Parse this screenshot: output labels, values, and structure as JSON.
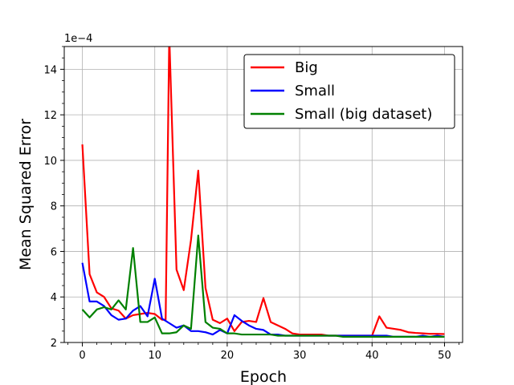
{
  "chart_data": {
    "type": "line",
    "title": "",
    "xlabel": "Epoch",
    "ylabel": "Mean Squared Error",
    "y_offset_label": "1e−4",
    "xlim": [
      -2.5,
      52.5
    ],
    "ylim": [
      2,
      15
    ],
    "x_ticks": [
      0,
      10,
      20,
      30,
      40,
      50
    ],
    "y_ticks": [
      2,
      4,
      6,
      8,
      10,
      12,
      14
    ],
    "x_minor_step": 2,
    "y_minor_step": 0.5,
    "grid": true,
    "legend_position": "top-right",
    "series": [
      {
        "name": "Big",
        "color": "#ff0000",
        "x": [
          0,
          1,
          2,
          3,
          4,
          5,
          6,
          7,
          8,
          9,
          10,
          11,
          11.5,
          12,
          13,
          14,
          15,
          16,
          17,
          18,
          19,
          20,
          21,
          22,
          23,
          24,
          25,
          26,
          27,
          28,
          29,
          30,
          31,
          32,
          33,
          34,
          35,
          36,
          37,
          38,
          39,
          40,
          41,
          42,
          43,
          44,
          45,
          46,
          47,
          48,
          49,
          50
        ],
        "y": [
          10.7,
          5.0,
          4.2,
          4.0,
          3.5,
          3.4,
          3.05,
          3.2,
          3.25,
          3.3,
          3.25,
          3.0,
          3.0,
          15.5,
          5.2,
          4.3,
          6.5,
          9.55,
          4.4,
          3.0,
          2.85,
          3.05,
          2.5,
          2.9,
          2.95,
          2.9,
          3.95,
          2.9,
          2.75,
          2.6,
          2.4,
          2.35,
          2.35,
          2.35,
          2.35,
          2.3,
          2.3,
          2.3,
          2.3,
          2.3,
          2.3,
          2.3,
          3.15,
          2.65,
          2.6,
          2.55,
          2.45,
          2.42,
          2.4,
          2.38,
          2.38,
          2.37
        ]
      },
      {
        "name": "Small",
        "color": "#0000ff",
        "x": [
          0,
          1,
          2,
          3,
          4,
          5,
          6,
          7,
          8,
          9,
          10,
          11,
          12,
          13,
          14,
          15,
          16,
          17,
          18,
          19,
          20,
          21,
          22,
          23,
          24,
          25,
          26,
          27,
          28,
          29,
          30,
          31,
          32,
          33,
          34,
          35,
          36,
          37,
          38,
          39,
          40,
          41,
          42,
          43,
          44,
          45,
          46,
          47,
          48,
          49,
          50
        ],
        "y": [
          5.5,
          3.8,
          3.8,
          3.6,
          3.2,
          3.0,
          3.05,
          3.4,
          3.6,
          3.15,
          4.8,
          3.05,
          2.85,
          2.65,
          2.75,
          2.5,
          2.5,
          2.45,
          2.35,
          2.55,
          2.4,
          3.2,
          2.95,
          2.75,
          2.6,
          2.55,
          2.35,
          2.35,
          2.3,
          2.3,
          2.3,
          2.3,
          2.3,
          2.3,
          2.3,
          2.3,
          2.3,
          2.3,
          2.3,
          2.3,
          2.3,
          2.3,
          2.3,
          2.25,
          2.25,
          2.25,
          2.25,
          2.3,
          2.25,
          2.3,
          2.25
        ]
      },
      {
        "name": "Small (big dataset)",
        "color": "#008000",
        "x": [
          0,
          1,
          2,
          3,
          4,
          5,
          6,
          7,
          8,
          9,
          10,
          11,
          12,
          13,
          14,
          15,
          16,
          17,
          18,
          19,
          20,
          21,
          22,
          23,
          24,
          25,
          26,
          27,
          28,
          29,
          30,
          31,
          32,
          33,
          34,
          35,
          36,
          37,
          38,
          39,
          40,
          41,
          42,
          43,
          44,
          45,
          46,
          47,
          48,
          49,
          50
        ],
        "y": [
          3.45,
          3.1,
          3.45,
          3.55,
          3.45,
          3.85,
          3.45,
          6.15,
          2.9,
          2.9,
          3.1,
          2.4,
          2.4,
          2.45,
          2.75,
          2.6,
          6.7,
          2.9,
          2.65,
          2.6,
          2.4,
          2.4,
          2.35,
          2.35,
          2.35,
          2.35,
          2.35,
          2.3,
          2.3,
          2.3,
          2.3,
          2.3,
          2.3,
          2.3,
          2.3,
          2.3,
          2.25,
          2.25,
          2.25,
          2.25,
          2.25,
          2.25,
          2.25,
          2.25,
          2.25,
          2.25,
          2.25,
          2.25,
          2.25,
          2.25,
          2.25
        ]
      }
    ]
  }
}
